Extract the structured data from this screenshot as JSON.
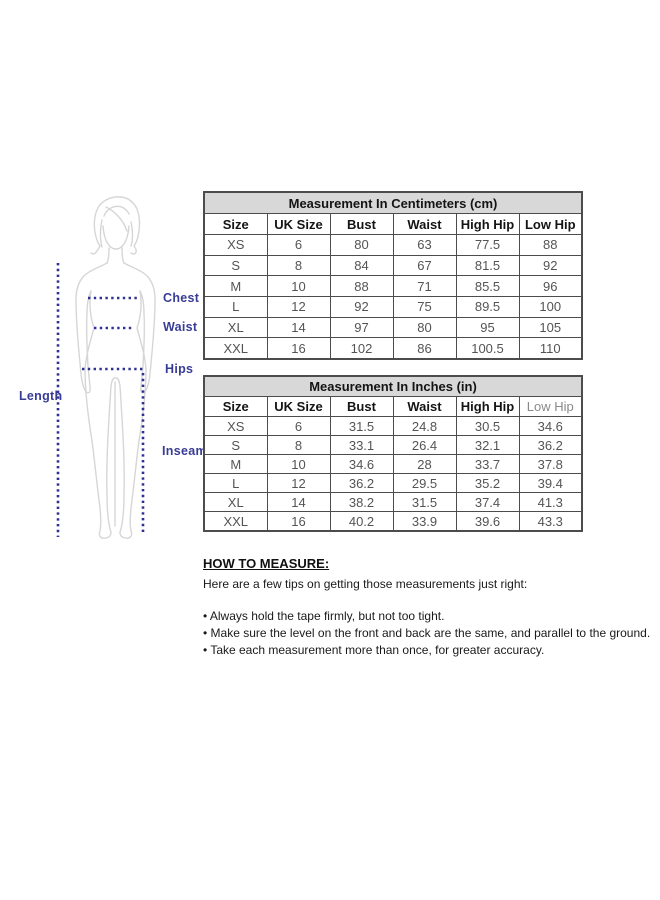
{
  "figure": {
    "labels": {
      "chest": "Chest",
      "waist": "Waist",
      "hips": "Hips",
      "length": "Length",
      "inseam": "Inseam"
    },
    "colors": {
      "label_navy": "#383c96",
      "dotted_line_navy": "#2e3192",
      "silhouette_gray": "#d6d6d6"
    }
  },
  "tables": [
    {
      "title": "Measurement In Centimeters (cm)",
      "columns": [
        "Size",
        "UK Size",
        "Bust",
        "Waist",
        "High Hip",
        "Low Hip"
      ],
      "muted_last_header": false,
      "rows": [
        [
          "XS",
          "6",
          "80",
          "63",
          "77.5",
          "88"
        ],
        [
          "S",
          "8",
          "84",
          "67",
          "81.5",
          "92"
        ],
        [
          "M",
          "10",
          "88",
          "71",
          "85.5",
          "96"
        ],
        [
          "L",
          "12",
          "92",
          "75",
          "89.5",
          "100"
        ],
        [
          "XL",
          "14",
          "97",
          "80",
          "95",
          "105"
        ],
        [
          "XXL",
          "16",
          "102",
          "86",
          "100.5",
          "110"
        ]
      ]
    },
    {
      "title": "Measurement In Inches (in)",
      "columns": [
        "Size",
        "UK Size",
        "Bust",
        "Waist",
        "High Hip",
        "Low Hip"
      ],
      "muted_last_header": true,
      "rows": [
        [
          "XS",
          "6",
          "31.5",
          "24.8",
          "30.5",
          "34.6"
        ],
        [
          "S",
          "8",
          "33.1",
          "26.4",
          "32.1",
          "36.2"
        ],
        [
          "M",
          "10",
          "34.6",
          "28",
          "33.7",
          "37.8"
        ],
        [
          "L",
          "12",
          "36.2",
          "29.5",
          "35.2",
          "39.4"
        ],
        [
          "XL",
          "14",
          "38.2",
          "31.5",
          "37.4",
          "41.3"
        ],
        [
          "XXL",
          "16",
          "40.2",
          "33.9",
          "39.6",
          "43.3"
        ]
      ]
    }
  ],
  "how_to_measure": {
    "heading": "HOW TO MEASURE:",
    "intro": "Here are a few tips on getting those measurements just right:",
    "bullet": "•",
    "tips": [
      "Always hold the tape firmly, but not too tight.",
      "Make sure the level on the front and back are the same, and parallel to the ground.",
      "Take each measurement more than once, for greater accuracy."
    ]
  }
}
